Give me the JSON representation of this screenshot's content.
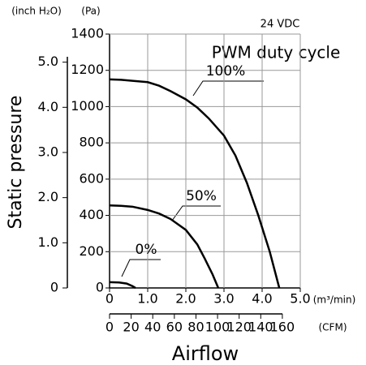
{
  "chart_data": {
    "type": "line",
    "supply_label": "24 VDC",
    "legend_title": "PWM duty cycle",
    "ylabel": "Static pressure",
    "xlabel": "Airflow",
    "y_unit": "(Pa)",
    "y2_unit": "(inch H₂O)",
    "x_unit": "(m³/min)",
    "x2_unit": "(CFM)",
    "ylim": [
      0,
      1400
    ],
    "yticks": [
      0,
      200,
      400,
      600,
      800,
      1000,
      1200,
      1400
    ],
    "y2lim": [
      0,
      5.622
    ],
    "y2ticks": [
      0,
      {
        "value": 1,
        "label": "1.0"
      },
      {
        "value": 2,
        "label": "2.0"
      },
      {
        "value": 3,
        "label": "3.0"
      },
      {
        "value": 4,
        "label": "4.0"
      },
      {
        "value": 5,
        "label": "5.0"
      }
    ],
    "xlim": [
      0,
      5
    ],
    "xticks": [
      0,
      {
        "value": 1,
        "label": "1.0"
      },
      {
        "value": 2,
        "label": "2.0"
      },
      {
        "value": 3,
        "label": "3.0"
      },
      {
        "value": 4,
        "label": "4.0"
      },
      {
        "value": 5,
        "label": "5.0"
      }
    ],
    "x2lim": [
      0,
      176.6
    ],
    "x2ticks": [
      0,
      20,
      40,
      60,
      80,
      100,
      120,
      140,
      160
    ],
    "grid": true,
    "series": [
      {
        "name": "100%",
        "color": "#000000",
        "x": [
          0,
          0.3,
          0.6,
          1.0,
          1.3,
          1.6,
          2.0,
          2.3,
          2.6,
          3.0,
          3.3,
          3.6,
          3.9,
          4.2,
          4.45
        ],
        "values": [
          1150,
          1148,
          1142,
          1135,
          1115,
          1085,
          1040,
          995,
          935,
          840,
          730,
          580,
          400,
          200,
          0
        ]
      },
      {
        "name": "50%",
        "color": "#000000",
        "x": [
          0,
          0.3,
          0.6,
          1.0,
          1.3,
          1.6,
          2.0,
          2.3,
          2.5,
          2.7,
          2.85
        ],
        "values": [
          455,
          453,
          448,
          430,
          410,
          380,
          320,
          240,
          160,
          75,
          0
        ]
      },
      {
        "name": "0%",
        "color": "#000000",
        "x": [
          0,
          0.25,
          0.45,
          0.6,
          0.68
        ],
        "values": [
          32,
          30,
          24,
          10,
          0
        ]
      }
    ]
  }
}
